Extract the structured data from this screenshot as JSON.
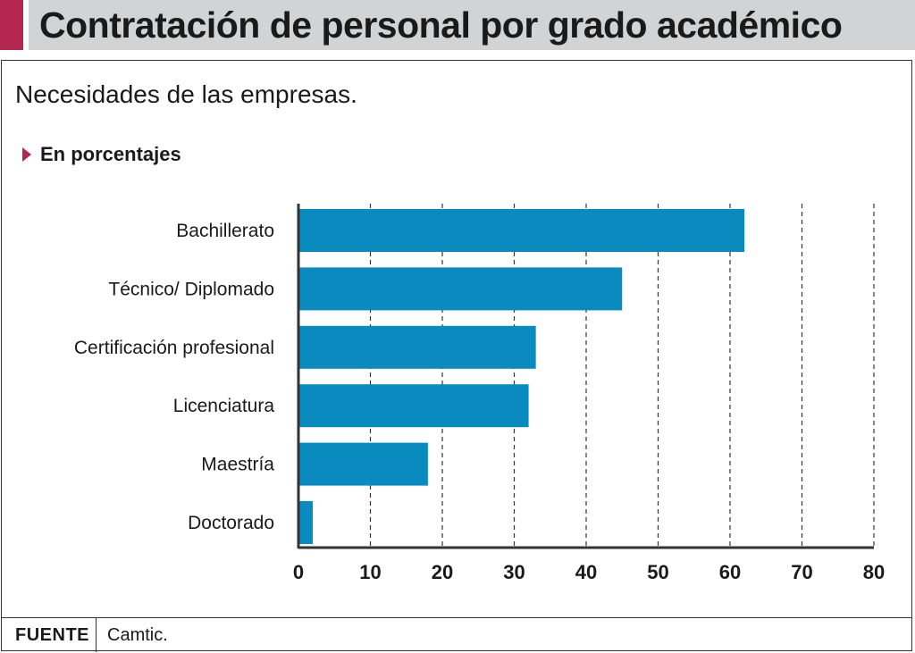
{
  "header": {
    "title": "Contratación de personal por grado académico"
  },
  "subtitle": "Necesidades de las empresas.",
  "unit_label": "En porcentajes",
  "colors": {
    "bar": "#0a8bc0",
    "accent": "#b5274f",
    "header_band": "#d1d3d4"
  },
  "chart_data": {
    "type": "bar",
    "orientation": "horizontal",
    "title": "Contratación de personal por grado académico",
    "subtitle": "Necesidades de las empresas.",
    "unit": "En porcentajes",
    "categories": [
      "Bachillerato",
      "Técnico/ Diplomado",
      "Certificación profesional",
      "Licenciatura",
      "Maestría",
      "Doctorado"
    ],
    "values": [
      62,
      45,
      33,
      32,
      18,
      2
    ],
    "xlim": [
      0,
      80
    ],
    "xticks": [
      0,
      10,
      20,
      30,
      40,
      50,
      60,
      70,
      80
    ],
    "grid": "vertical dashed"
  },
  "footer": {
    "source_key": "FUENTE",
    "source_value": "Camtic."
  }
}
